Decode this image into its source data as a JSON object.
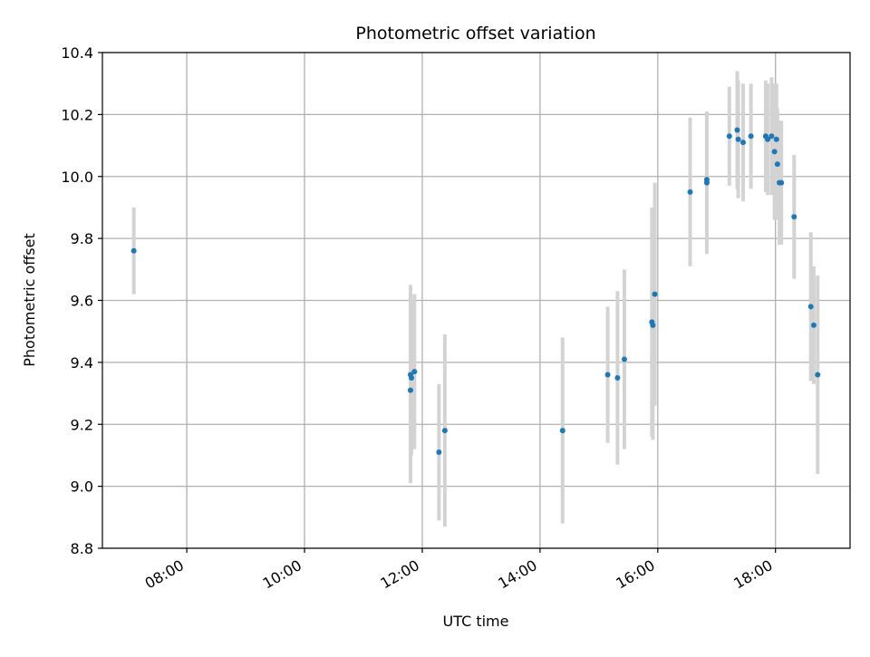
{
  "chart_data": {
    "type": "scatter",
    "title": "Photometric offset variation",
    "xlabel": "UTC time",
    "ylabel": "Photometric offset",
    "x_ticks": [
      "08:00",
      "10:00",
      "12:00",
      "14:00",
      "16:00",
      "18:00"
    ],
    "y_ticks": [
      "8.8",
      "9.0",
      "9.2",
      "9.4",
      "9.6",
      "9.8",
      "10.0",
      "10.2",
      "10.4"
    ],
    "xlim": [
      "06:34",
      "19:16"
    ],
    "ylim": [
      8.8,
      10.4
    ],
    "grid": true,
    "colors": {
      "marker": "#1f77b4",
      "errorbar": "#d3d3d3",
      "grid": "#b0b0b0"
    },
    "points": [
      {
        "x": "07:06",
        "y": 9.76,
        "err": 0.14
      },
      {
        "x": "11:48",
        "y": 9.31,
        "err": 0.3
      },
      {
        "x": "11:48",
        "y": 9.36,
        "err": 0.29
      },
      {
        "x": "11:49",
        "y": 9.35,
        "err": 0.25
      },
      {
        "x": "11:52",
        "y": 9.37,
        "err": 0.25
      },
      {
        "x": "12:17",
        "y": 9.11,
        "err": 0.22
      },
      {
        "x": "12:23",
        "y": 9.18,
        "err": 0.31
      },
      {
        "x": "14:23",
        "y": 9.18,
        "err": 0.3
      },
      {
        "x": "15:09",
        "y": 9.36,
        "err": 0.22
      },
      {
        "x": "15:19",
        "y": 9.35,
        "err": 0.28
      },
      {
        "x": "15:26",
        "y": 9.41,
        "err": 0.29
      },
      {
        "x": "15:54",
        "y": 9.53,
        "err": 0.37
      },
      {
        "x": "15:55",
        "y": 9.52,
        "err": 0.37
      },
      {
        "x": "15:57",
        "y": 9.62,
        "err": 0.36
      },
      {
        "x": "16:33",
        "y": 9.95,
        "err": 0.24
      },
      {
        "x": "16:50",
        "y": 9.98,
        "err": 0.23
      },
      {
        "x": "16:50",
        "y": 9.99,
        "err": 0.22
      },
      {
        "x": "17:13",
        "y": 10.13,
        "err": 0.16
      },
      {
        "x": "17:21",
        "y": 10.15,
        "err": 0.19
      },
      {
        "x": "17:22",
        "y": 10.12,
        "err": 0.19
      },
      {
        "x": "17:27",
        "y": 10.11,
        "err": 0.19
      },
      {
        "x": "17:35",
        "y": 10.13,
        "err": 0.17
      },
      {
        "x": "17:50",
        "y": 10.13,
        "err": 0.18
      },
      {
        "x": "17:52",
        "y": 10.12,
        "err": 0.18
      },
      {
        "x": "17:56",
        "y": 10.13,
        "err": 0.19
      },
      {
        "x": "17:59",
        "y": 10.08,
        "err": 0.22
      },
      {
        "x": "18:01",
        "y": 10.12,
        "err": 0.18
      },
      {
        "x": "18:02",
        "y": 10.04,
        "err": 0.18
      },
      {
        "x": "18:04",
        "y": 9.98,
        "err": 0.2
      },
      {
        "x": "18:06",
        "y": 9.98,
        "err": 0.2
      },
      {
        "x": "18:19",
        "y": 9.87,
        "err": 0.2
      },
      {
        "x": "18:36",
        "y": 9.58,
        "err": 0.24
      },
      {
        "x": "18:39",
        "y": 9.52,
        "err": 0.19
      },
      {
        "x": "18:43",
        "y": 9.36,
        "err": 0.32
      }
    ]
  }
}
